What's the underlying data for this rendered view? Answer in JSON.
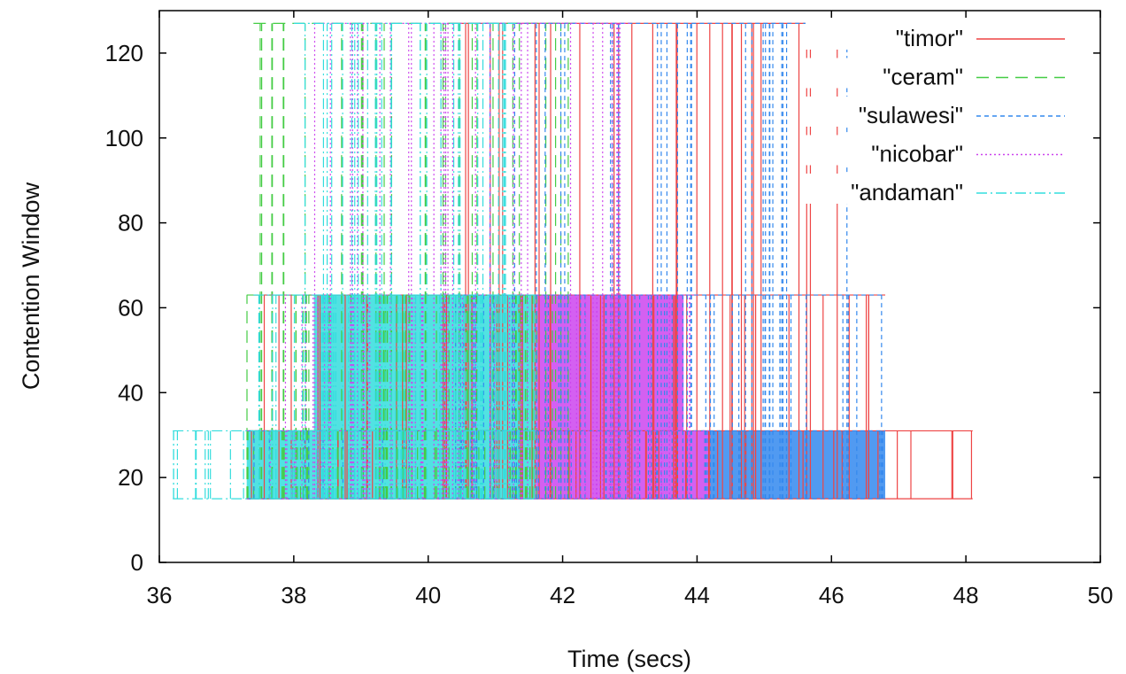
{
  "chart_data": {
    "type": "line",
    "title": "",
    "xlabel": "Time (secs)",
    "ylabel": "Contention Window",
    "xlim": [
      36,
      50
    ],
    "ylim": [
      0,
      130
    ],
    "x_ticks": [
      "36",
      "38",
      "40",
      "42",
      "44",
      "46",
      "48",
      "50"
    ],
    "y_ticks": [
      "0",
      "20",
      "40",
      "60",
      "80",
      "100",
      "120"
    ],
    "grid": false,
    "legend_position": "top-right",
    "cw_levels": [
      15,
      31,
      63,
      127
    ],
    "series": [
      {
        "name": "\"timor\"",
        "color": "#ee4444",
        "dash": "solid",
        "x_range": [
          37.3,
          48.1
        ],
        "level_ranges": {
          "15": [
            37.3,
            48.1
          ],
          "31": [
            37.3,
            48.1
          ],
          "63": [
            37.4,
            46.8
          ],
          "127": [
            40.3,
            46.7
          ]
        }
      },
      {
        "name": "\"ceram\"",
        "color": "#44cc44",
        "dash": "long-dash",
        "x_range": [
          37.3,
          42.2
        ],
        "level_ranges": {
          "15": [
            37.3,
            41.6
          ],
          "31": [
            37.3,
            41.6
          ],
          "63": [
            37.3,
            42.2
          ],
          "127": [
            37.4,
            42.2
          ]
        }
      },
      {
        "name": "\"sulawesi\"",
        "color": "#3388ee",
        "dash": "short-dash",
        "x_range": [
          37.3,
          46.8
        ],
        "level_ranges": {
          "15": [
            37.3,
            46.8
          ],
          "31": [
            37.3,
            46.8
          ],
          "63": [
            40.4,
            46.8
          ],
          "127": [
            40.6,
            46.4
          ]
        }
      },
      {
        "name": "\"nicobar\"",
        "color": "#cc44ee",
        "dash": "dotted",
        "x_range": [
          37.3,
          44.2
        ],
        "level_ranges": {
          "15": [
            37.3,
            44.2
          ],
          "31": [
            37.3,
            44.2
          ],
          "63": [
            37.6,
            44.0
          ],
          "127": [
            38.3,
            43.0
          ]
        }
      },
      {
        "name": "\"andaman\"",
        "color": "#33dddd",
        "dash": "dash-dot",
        "x_range": [
          36.2,
          41.6
        ],
        "level_ranges": {
          "15": [
            36.2,
            41.6
          ],
          "31": [
            36.2,
            41.6
          ],
          "63": [
            37.4,
            41.6
          ],
          "127": [
            38.0,
            41.3
          ]
        }
      }
    ],
    "dense_bands": [
      {
        "series": "\"andaman\"",
        "x": [
          37.3,
          41.6
        ],
        "y": [
          15,
          31
        ]
      },
      {
        "series": "\"nicobar\"",
        "x": [
          41.6,
          44.2
        ],
        "y": [
          15,
          31
        ]
      },
      {
        "series": "\"sulawesi\"",
        "x": [
          44.2,
          46.8
        ],
        "y": [
          15,
          31
        ]
      },
      {
        "series": "\"andaman\"",
        "x": [
          38.3,
          41.6
        ],
        "y": [
          31,
          63
        ]
      },
      {
        "series": "\"nicobar\"",
        "x": [
          41.6,
          43.8
        ],
        "y": [
          31,
          63
        ]
      }
    ]
  }
}
